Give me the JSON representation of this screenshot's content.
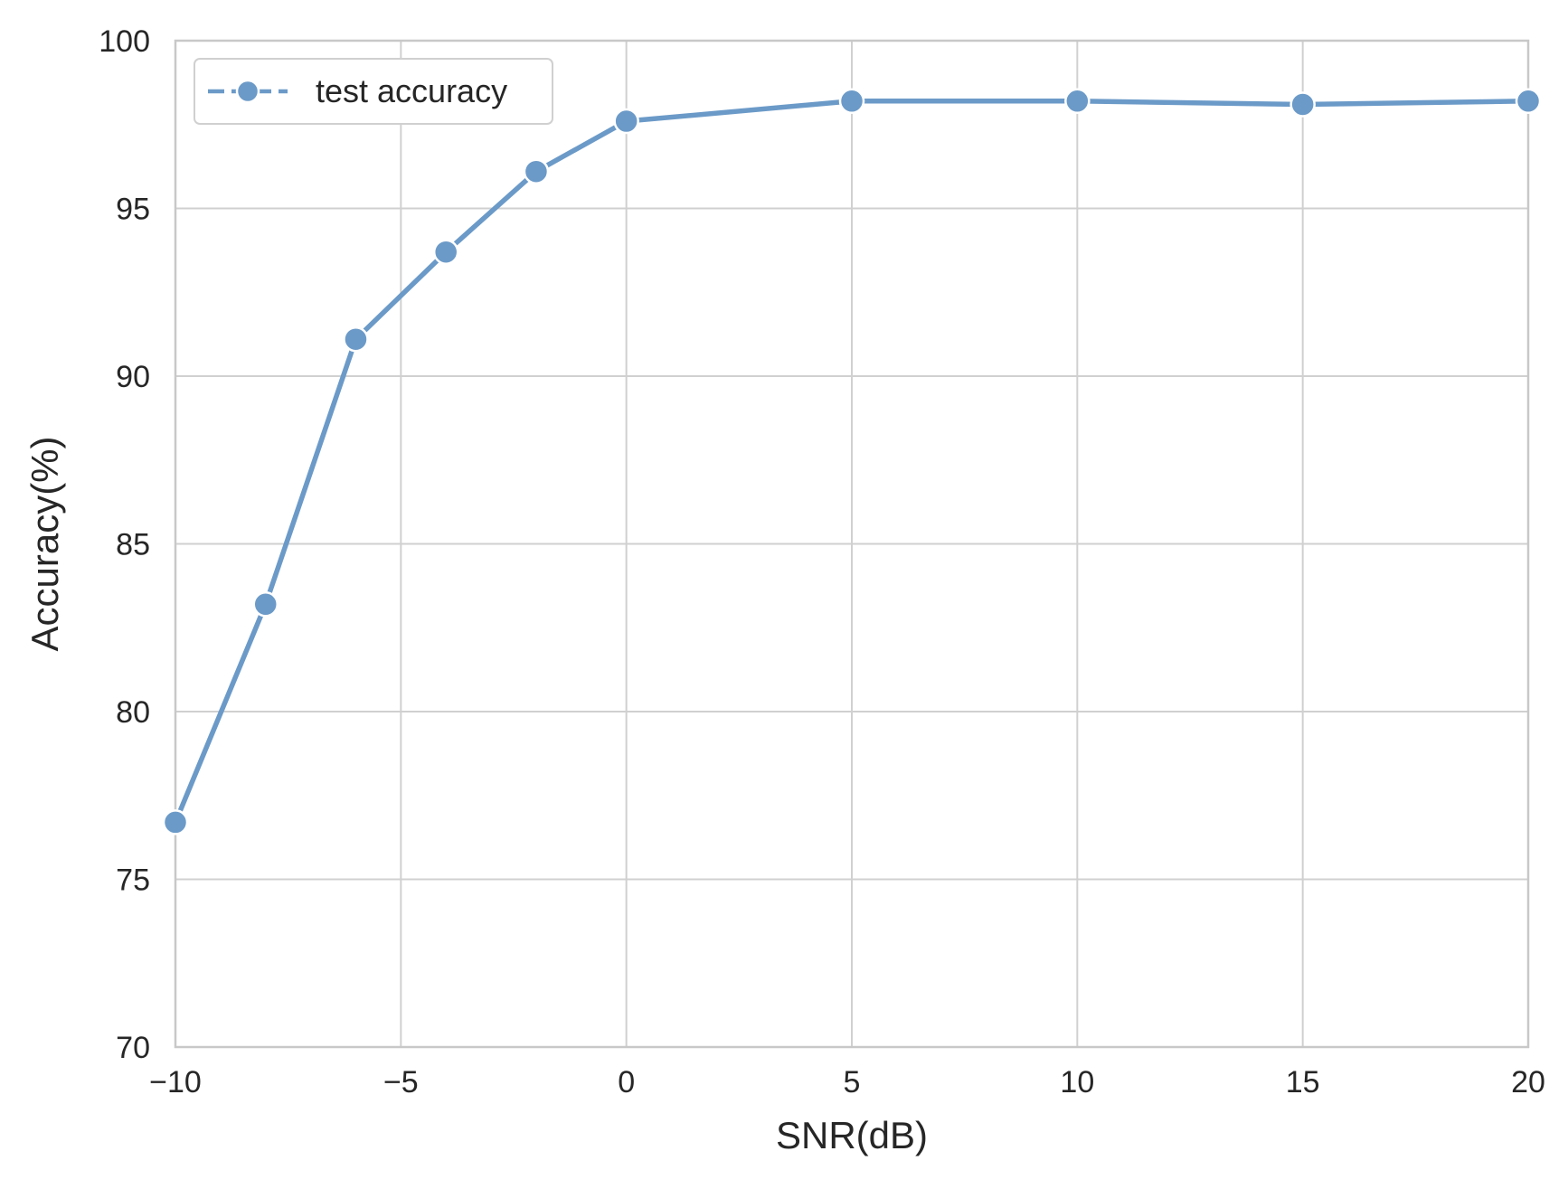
{
  "chart_data": {
    "type": "line",
    "title": "",
    "xlabel": "SNR(dB)",
    "ylabel": "Accuracy(%)",
    "xlim": [
      -10,
      20
    ],
    "ylim": [
      70,
      100
    ],
    "xticks": [
      -10,
      -5,
      0,
      5,
      10,
      15,
      20
    ],
    "xtick_labels": [
      "−10",
      "−5",
      "0",
      "5",
      "10",
      "15",
      "20"
    ],
    "yticks": [
      70,
      75,
      80,
      85,
      90,
      95,
      100
    ],
    "ytick_labels": [
      "70",
      "75",
      "80",
      "85",
      "90",
      "95",
      "100"
    ],
    "grid": true,
    "legend_position": "top-left",
    "series": [
      {
        "name": "test accuracy",
        "color": "#6b9ac8",
        "marker": "circle",
        "x": [
          -10,
          -8,
          -6,
          -4,
          -2,
          0,
          5,
          10,
          15,
          20
        ],
        "y": [
          76.7,
          83.2,
          91.1,
          93.7,
          96.1,
          97.6,
          98.2,
          98.2,
          98.1,
          98.2
        ]
      }
    ]
  }
}
